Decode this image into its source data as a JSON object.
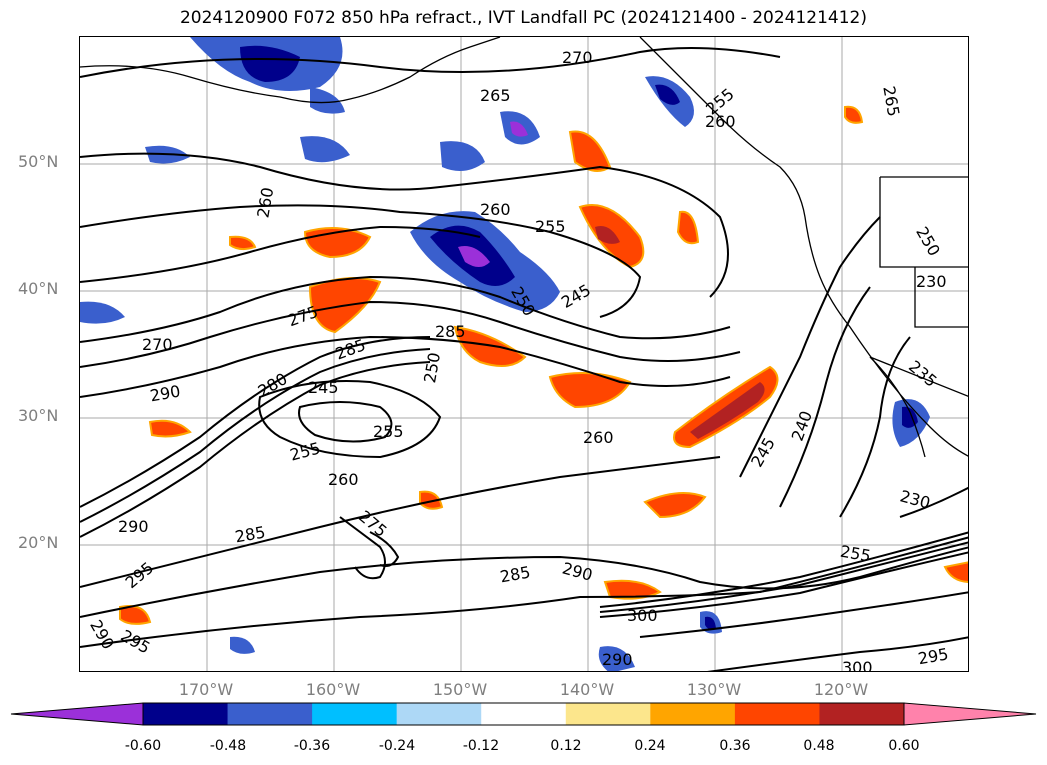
{
  "title": "2024120900 F072 850 hPa refract., IVT Landfall PC (2024121400 - 2024121412)",
  "lat_labels": [
    "50°N",
    "40°N",
    "30°N",
    "20°N"
  ],
  "lon_labels": [
    "170°W",
    "160°W",
    "150°W",
    "140°W",
    "130°W",
    "120°W"
  ],
  "contour_labels": [
    "270",
    "265",
    "265",
    "260",
    "260",
    "255",
    "245",
    "250",
    "275",
    "270",
    "285",
    "285",
    "290",
    "280",
    "245",
    "250",
    "255",
    "255",
    "260",
    "260",
    "245",
    "240",
    "235",
    "230",
    "230",
    "250",
    "290",
    "285",
    "275",
    "295",
    "290",
    "295",
    "285",
    "290",
    "300",
    "290",
    "300",
    "295",
    "255",
    "260",
    "255"
  ],
  "colorbar": {
    "ticks": [
      "-0.60",
      "-0.48",
      "-0.36",
      "-0.24",
      "-0.12",
      "0.12",
      "0.24",
      "0.36",
      "0.48",
      "0.60"
    ],
    "colors": [
      "#9b30d9",
      "#00008b",
      "#3a5fcd",
      "#00bfff",
      "#add8f6",
      "#ffffff",
      "#fce68c",
      "#ffa500",
      "#ff4500",
      "#b22222",
      "#ff82ab"
    ]
  }
}
